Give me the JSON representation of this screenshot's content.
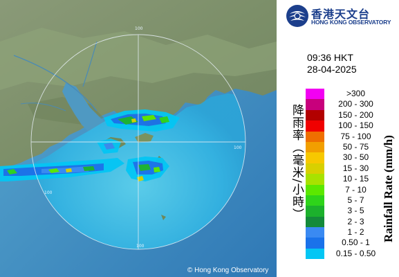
{
  "map": {
    "copyright": "© Hong Kong Observatory",
    "range_labels": [
      "100",
      "100",
      "100",
      "100"
    ]
  },
  "logo": {
    "name_cn": "香港天文台",
    "name_en": "HONG KONG OBSERVATORY",
    "icon": "hko-emblem-icon",
    "colors": {
      "brand": "#1c3f8c"
    }
  },
  "observation": {
    "time": "09:36 HKT",
    "date": "28-04-2025"
  },
  "legend": {
    "title_cn": "降雨率（毫米/小時）",
    "title_en": "Rainfall Rate (mm/h)",
    "items": [
      {
        "label": ">300",
        "color": "#f200f2"
      },
      {
        "label": "200 - 300",
        "color": "#c8007c"
      },
      {
        "label": "150 - 200",
        "color": "#b20000"
      },
      {
        "label": "100 - 150",
        "color": "#f00000"
      },
      {
        "label": "75 - 100",
        "color": "#ef6f00"
      },
      {
        "label": "50 - 75",
        "color": "#f29f00"
      },
      {
        "label": "30 - 50",
        "color": "#f7c800"
      },
      {
        "label": "15 - 30",
        "color": "#d8d000"
      },
      {
        "label": "10 - 15",
        "color": "#a8e200"
      },
      {
        "label": "7 - 10",
        "color": "#5ce800"
      },
      {
        "label": "5 - 7",
        "color": "#2ed41a"
      },
      {
        "label": "3 - 5",
        "color": "#1cb12c"
      },
      {
        "label": "2 - 3",
        "color": "#148a3a"
      },
      {
        "label": "1 - 2",
        "color": "#3a8af2"
      },
      {
        "label": "0.50 - 1",
        "color": "#1a72ea"
      },
      {
        "label": "0.15 - 0.50",
        "color": "#04c6f4"
      }
    ]
  }
}
